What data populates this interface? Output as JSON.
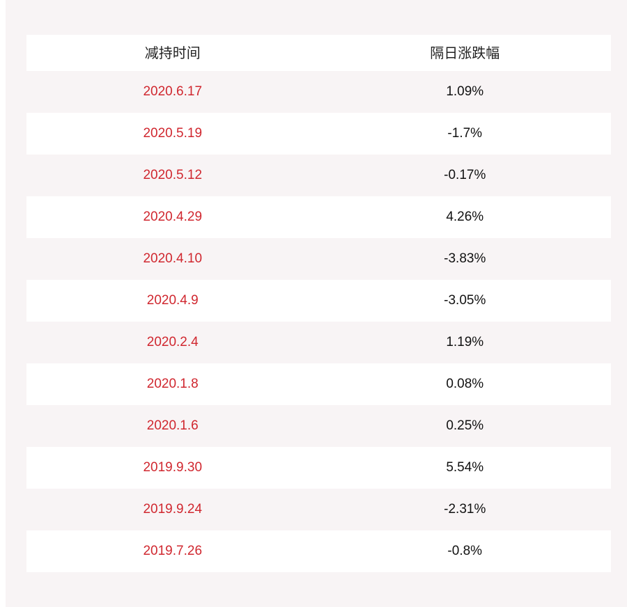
{
  "table": {
    "headers": [
      "减持时间",
      "隔日涨跌幅"
    ],
    "rows": [
      {
        "date": "2020.6.17",
        "change": "1.09%"
      },
      {
        "date": "2020.5.19",
        "change": "-1.7%"
      },
      {
        "date": "2020.5.12",
        "change": "-0.17%"
      },
      {
        "date": "2020.4.29",
        "change": "4.26%"
      },
      {
        "date": "2020.4.10",
        "change": "-3.83%"
      },
      {
        "date": "2020.4.9",
        "change": "-3.05%"
      },
      {
        "date": "2020.2.4",
        "change": "1.19%"
      },
      {
        "date": "2020.1.8",
        "change": "0.08%"
      },
      {
        "date": "2020.1.6",
        "change": "0.25%"
      },
      {
        "date": "2019.9.30",
        "change": "5.54%"
      },
      {
        "date": "2019.9.24",
        "change": "-2.31%"
      },
      {
        "date": "2019.7.26",
        "change": "-0.8%"
      }
    ]
  },
  "colors": {
    "date_text": "#d0272f",
    "value_text": "#111111",
    "panel_background": "#f8f4f5",
    "row_background": "#ffffff"
  }
}
